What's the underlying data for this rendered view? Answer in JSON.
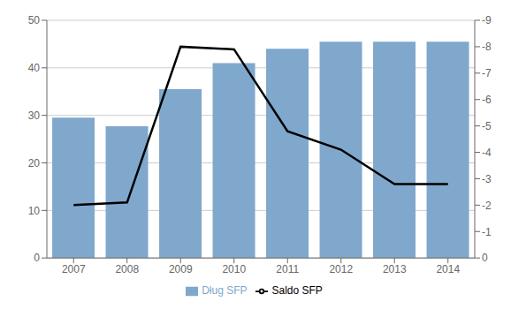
{
  "chart_data": {
    "type": "bar",
    "categories": [
      "2007",
      "2008",
      "2009",
      "2010",
      "2011",
      "2012",
      "2013",
      "2014"
    ],
    "series": [
      {
        "name": "Dług SFP",
        "type": "bar",
        "color": "#7fa8cc",
        "values": [
          29.5,
          27.7,
          35.5,
          41.0,
          44.0,
          45.5,
          45.5,
          45.5
        ]
      },
      {
        "name": "Saldo SFP",
        "type": "line",
        "color": "#000000",
        "axis": "y2",
        "values": [
          -2.0,
          -2.1,
          -8.0,
          -7.9,
          -4.8,
          -4.1,
          -2.8,
          -2.8
        ]
      }
    ],
    "ylim": [
      0,
      50
    ],
    "yticks": [
      0,
      10,
      20,
      30,
      40,
      50
    ],
    "y2lim": [
      0,
      -9
    ],
    "y2ticks": [
      0,
      -1,
      -2,
      -3,
      -4,
      -5,
      -6,
      -7,
      -8,
      -9
    ],
    "grid": true,
    "legend": "bottom"
  }
}
